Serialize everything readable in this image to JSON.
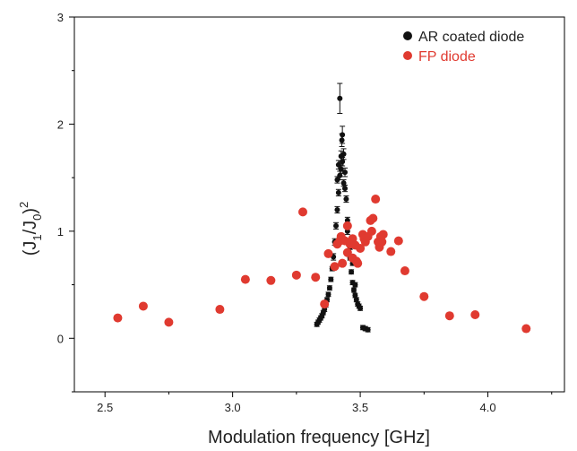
{
  "chart_data": {
    "type": "scatter",
    "xlabel": "Modulation frequency [GHz]",
    "ylabel_parts": [
      "(J",
      "1",
      "/J",
      "0",
      ")",
      "2"
    ],
    "xlim": [
      2.38,
      4.3
    ],
    "ylim": [
      -0.5,
      3.0
    ],
    "xticks": [
      "2.5",
      "3.0",
      "3.5",
      "4.0"
    ],
    "xtick_values": [
      2.5,
      3.0,
      3.5,
      4.0
    ],
    "yticks": [
      "0",
      "1",
      "2",
      "3"
    ],
    "ytick_values": [
      0,
      1,
      2,
      3
    ],
    "legend_position": "top-right",
    "grid": false,
    "series": [
      {
        "name": "AR coated diode",
        "color": "#111111",
        "marker_radius": 3,
        "error_bars": true,
        "points": [
          [
            3.33,
            0.13
          ],
          [
            3.335,
            0.15
          ],
          [
            3.34,
            0.17
          ],
          [
            3.345,
            0.19
          ],
          [
            3.35,
            0.21
          ],
          [
            3.355,
            0.24
          ],
          [
            3.36,
            0.27
          ],
          [
            3.365,
            0.31
          ],
          [
            3.37,
            0.36
          ],
          [
            3.375,
            0.41
          ],
          [
            3.38,
            0.47
          ],
          [
            3.385,
            0.55
          ],
          [
            3.39,
            0.65
          ],
          [
            3.395,
            0.76
          ],
          [
            3.4,
            0.9
          ],
          [
            3.405,
            1.05
          ],
          [
            3.41,
            1.2
          ],
          [
            3.415,
            1.36
          ],
          [
            3.42,
            1.52
          ],
          [
            3.425,
            1.7
          ],
          [
            3.428,
            1.85
          ],
          [
            3.43,
            1.9
          ],
          [
            3.435,
            1.72
          ],
          [
            3.44,
            1.55
          ],
          [
            3.445,
            1.3
          ],
          [
            3.45,
            1.1
          ],
          [
            3.455,
            0.9
          ],
          [
            3.46,
            0.75
          ],
          [
            3.465,
            0.62
          ],
          [
            3.47,
            0.52
          ],
          [
            3.475,
            0.45
          ],
          [
            3.48,
            0.4
          ],
          [
            3.485,
            0.36
          ],
          [
            3.49,
            0.32
          ],
          [
            3.495,
            0.3
          ],
          [
            3.5,
            0.28
          ],
          [
            3.51,
            0.1
          ],
          [
            3.52,
            0.09
          ],
          [
            3.53,
            0.08
          ],
          [
            3.42,
            2.24
          ],
          [
            3.415,
            1.62
          ],
          [
            3.425,
            1.58
          ],
          [
            3.435,
            1.45
          ],
          [
            3.41,
            1.48
          ],
          [
            3.43,
            1.65
          ],
          [
            3.44,
            1.4
          ],
          [
            3.45,
            1.0
          ],
          [
            3.46,
            0.85
          ],
          [
            3.47,
            0.7
          ],
          [
            3.48,
            0.5
          ]
        ],
        "error": [
          0.02,
          0.02,
          0.02,
          0.02,
          0.02,
          0.02,
          0.02,
          0.02,
          0.02,
          0.02,
          0.02,
          0.02,
          0.02,
          0.03,
          0.03,
          0.03,
          0.03,
          0.03,
          0.04,
          0.05,
          0.06,
          0.08,
          0.05,
          0.04,
          0.03,
          0.03,
          0.03,
          0.02,
          0.02,
          0.02,
          0.02,
          0.02,
          0.02,
          0.02,
          0.02,
          0.02,
          0.02,
          0.02,
          0.02,
          0.14,
          0.04,
          0.04,
          0.03,
          0.03,
          0.04,
          0.03,
          0.03,
          0.02,
          0.02,
          0.02
        ]
      },
      {
        "name": "FP diode",
        "color": "#e03a30",
        "marker_radius": 5,
        "error_bars": false,
        "points": [
          [
            2.55,
            0.19
          ],
          [
            2.65,
            0.3
          ],
          [
            2.75,
            0.15
          ],
          [
            2.95,
            0.27
          ],
          [
            3.05,
            0.55
          ],
          [
            3.15,
            0.54
          ],
          [
            3.25,
            0.59
          ],
          [
            3.275,
            1.18
          ],
          [
            3.325,
            0.57
          ],
          [
            3.36,
            0.32
          ],
          [
            3.375,
            0.79
          ],
          [
            3.4,
            0.67
          ],
          [
            3.41,
            0.88
          ],
          [
            3.42,
            0.91
          ],
          [
            3.425,
            0.95
          ],
          [
            3.43,
            0.7
          ],
          [
            3.44,
            0.91
          ],
          [
            3.45,
            1.05
          ],
          [
            3.45,
            0.8
          ],
          [
            3.46,
            0.88
          ],
          [
            3.47,
            0.75
          ],
          [
            3.47,
            0.93
          ],
          [
            3.48,
            0.87
          ],
          [
            3.485,
            0.72
          ],
          [
            3.49,
            0.7
          ],
          [
            3.5,
            0.84
          ],
          [
            3.51,
            0.97
          ],
          [
            3.515,
            0.93
          ],
          [
            3.52,
            0.9
          ],
          [
            3.53,
            0.95
          ],
          [
            3.54,
            1.1
          ],
          [
            3.545,
            1.0
          ],
          [
            3.55,
            1.12
          ],
          [
            3.56,
            1.3
          ],
          [
            3.57,
            0.9
          ],
          [
            3.575,
            0.85
          ],
          [
            3.58,
            0.95
          ],
          [
            3.585,
            0.9
          ],
          [
            3.59,
            0.97
          ],
          [
            3.62,
            0.81
          ],
          [
            3.65,
            0.91
          ],
          [
            3.675,
            0.63
          ],
          [
            3.75,
            0.39
          ],
          [
            3.85,
            0.21
          ],
          [
            3.95,
            0.22
          ],
          [
            4.15,
            0.09
          ]
        ]
      }
    ]
  }
}
